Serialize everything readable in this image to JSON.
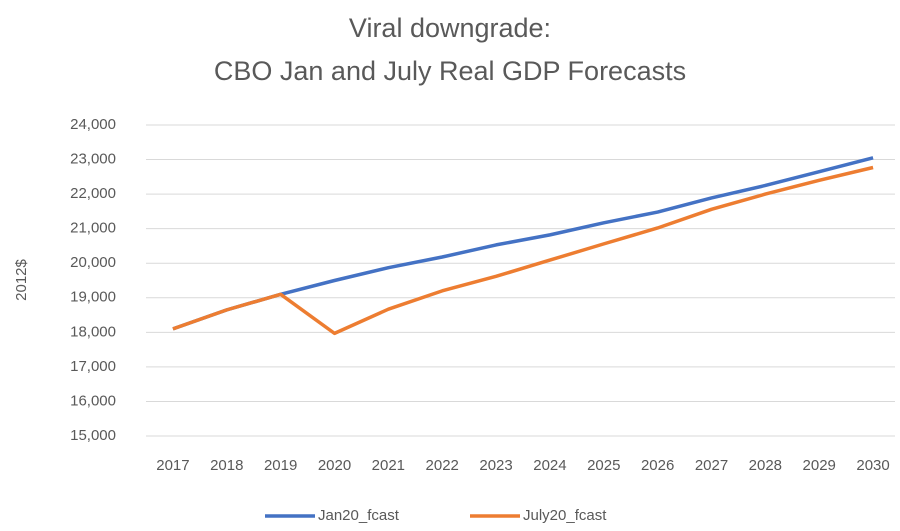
{
  "chart_data": {
    "type": "line",
    "title": [
      "Viral downgrade:",
      "CBO Jan and July Real GDP Forecasts"
    ],
    "y_label": "2012$",
    "categories": [
      "2017",
      "2018",
      "2019",
      "2020",
      "2021",
      "2022",
      "2023",
      "2024",
      "2025",
      "2026",
      "2027",
      "2028",
      "2029",
      "2030"
    ],
    "series": [
      {
        "name": "Jan20_fcast",
        "color": "#4472c4",
        "values": [
          18100,
          18650,
          19100,
          19500,
          19870,
          20180,
          20530,
          20820,
          21170,
          21480,
          21890,
          22250,
          22650,
          23050
        ]
      },
      {
        "name": "July20_fcast",
        "color": "#ed7d31",
        "values": [
          18100,
          18650,
          19100,
          17970,
          18670,
          19200,
          19620,
          20090,
          20560,
          21020,
          21560,
          22000,
          22400,
          22770
        ]
      }
    ],
    "ylim": [
      15000,
      24000
    ],
    "yticks": [
      {
        "value": 15000,
        "label": "15,000"
      },
      {
        "value": 16000,
        "label": "16,000"
      },
      {
        "value": 17000,
        "label": "17,000"
      },
      {
        "value": 18000,
        "label": "18,000"
      },
      {
        "value": 19000,
        "label": "19,000"
      },
      {
        "value": 20000,
        "label": "20,000"
      },
      {
        "value": 21000,
        "label": "21,000"
      },
      {
        "value": 22000,
        "label": "22,000"
      },
      {
        "value": 23000,
        "label": "23,000"
      },
      {
        "value": 24000,
        "label": "24,000"
      }
    ],
    "grid": true,
    "legend": "bottom"
  }
}
